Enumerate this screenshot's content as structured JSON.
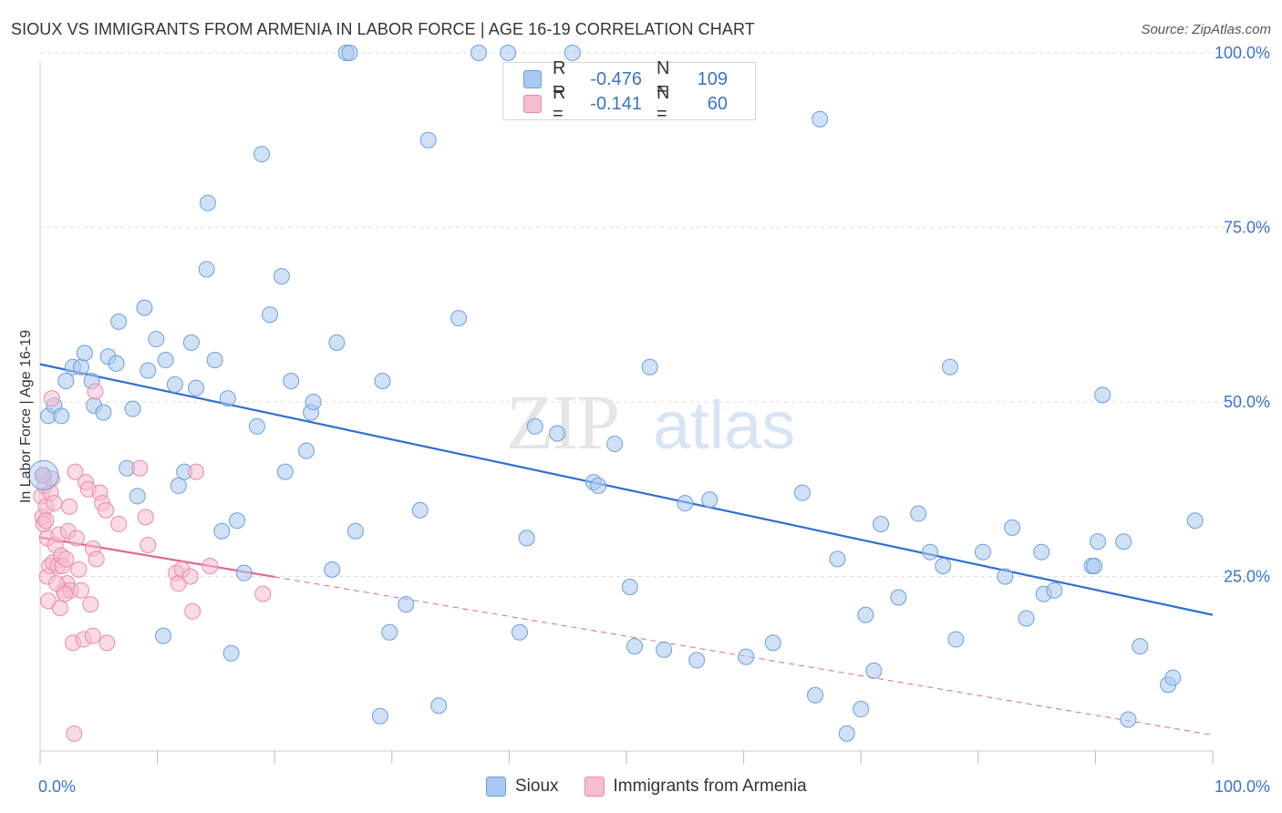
{
  "title": "SIOUX VS IMMIGRANTS FROM ARMENIA IN LABOR FORCE | AGE 16-19 CORRELATION CHART",
  "source": "Source: ZipAtlas.com",
  "watermark": {
    "zip": "ZIP",
    "atlas": "atlas"
  },
  "colors": {
    "blue_fill": "#a9c8ef",
    "blue_stroke": "#6a9fdf",
    "blue_line": "#2f6fd0",
    "pink_fill": "#f6bcd0",
    "pink_stroke": "#e98aa8",
    "pink_line": "#e06690",
    "tick_text": "#3a74c7",
    "grid": "#dddddd"
  },
  "legend": {
    "rows": [
      {
        "r_label": "R =",
        "r_value": "-0.476",
        "n_label": "N =",
        "n_value": "109"
      },
      {
        "r_label": "R =",
        "r_value": "-0.141",
        "n_label": "N =",
        "n_value": "60"
      }
    ]
  },
  "bottom_legend": {
    "series1": "Sioux",
    "series2": "Immigrants from Armenia"
  },
  "chart_data": {
    "type": "scatter",
    "title": "SIOUX VS IMMIGRANTS FROM ARMENIA IN LABOR FORCE | AGE 16-19 CORRELATION CHART",
    "ylabel": "In Labor Force | Age 16-19",
    "xlabel": "",
    "xlim": [
      0,
      100
    ],
    "ylim": [
      0,
      102
    ],
    "x_tick_labels": [
      "0.0%",
      "100.0%"
    ],
    "y_ticks": [
      25,
      50,
      75,
      100
    ],
    "y_tick_labels": [
      "25.0%",
      "50.0%",
      "75.0%",
      "100.0%"
    ],
    "grid": true,
    "series": [
      {
        "name": "Sioux",
        "r": -0.476,
        "n": 109,
        "trend": {
          "x": [
            0,
            100
          ],
          "y": [
            55.4,
            19.5
          ],
          "dashed_x": null
        },
        "points": [
          [
            0.3,
            39.5
          ],
          [
            0.7,
            48
          ],
          [
            1.2,
            49.5
          ],
          [
            1.8,
            48
          ],
          [
            2.2,
            53
          ],
          [
            2.8,
            55
          ],
          [
            3.5,
            55
          ],
          [
            3.8,
            57
          ],
          [
            4.4,
            53
          ],
          [
            4.6,
            49.5
          ],
          [
            5.4,
            48.5
          ],
          [
            5.8,
            56.5
          ],
          [
            6.5,
            55.5
          ],
          [
            6.7,
            61.5
          ],
          [
            7.4,
            40.5
          ],
          [
            7.9,
            49
          ],
          [
            8.3,
            36.5
          ],
          [
            8.9,
            63.5
          ],
          [
            9.2,
            54.5
          ],
          [
            9.9,
            59
          ],
          [
            10.5,
            16.5
          ],
          [
            10.7,
            56
          ],
          [
            11.5,
            52.5
          ],
          [
            11.8,
            38
          ],
          [
            12.3,
            40
          ],
          [
            12.9,
            58.5
          ],
          [
            13.3,
            52
          ],
          [
            14.2,
            69
          ],
          [
            14.3,
            78.5
          ],
          [
            14.9,
            56
          ],
          [
            15.5,
            31.5
          ],
          [
            16.0,
            50.5
          ],
          [
            16.3,
            14
          ],
          [
            16.8,
            33
          ],
          [
            17.4,
            25.5
          ],
          [
            18.5,
            46.5
          ],
          [
            18.9,
            85.5
          ],
          [
            19.6,
            62.5
          ],
          [
            20.6,
            68
          ],
          [
            20.9,
            40
          ],
          [
            21.4,
            53
          ],
          [
            22.7,
            43
          ],
          [
            23.1,
            48.5
          ],
          [
            23.3,
            50
          ],
          [
            24.9,
            26
          ],
          [
            25.3,
            58.5
          ],
          [
            26.1,
            100
          ],
          [
            26.4,
            100
          ],
          [
            26.9,
            31.5
          ],
          [
            29.0,
            5
          ],
          [
            29.2,
            53
          ],
          [
            29.8,
            17
          ],
          [
            31.2,
            21
          ],
          [
            32.4,
            34.5
          ],
          [
            33.1,
            87.5
          ],
          [
            34.0,
            6.5
          ],
          [
            35.7,
            62
          ],
          [
            37.4,
            100
          ],
          [
            39.9,
            100
          ],
          [
            40.9,
            17
          ],
          [
            41.5,
            30.5
          ],
          [
            42.2,
            46.5
          ],
          [
            44.1,
            45.5
          ],
          [
            45.4,
            100
          ],
          [
            47.2,
            38.5
          ],
          [
            47.6,
            38
          ],
          [
            49.0,
            44
          ],
          [
            50.3,
            23.5
          ],
          [
            50.7,
            15
          ],
          [
            52.0,
            55
          ],
          [
            53.2,
            14.5
          ],
          [
            55.0,
            35.5
          ],
          [
            56.0,
            13
          ],
          [
            57.1,
            36
          ],
          [
            60.2,
            13.5
          ],
          [
            62.5,
            15.5
          ],
          [
            65.0,
            37
          ],
          [
            66.1,
            8
          ],
          [
            66.5,
            90.5
          ],
          [
            68.0,
            27.5
          ],
          [
            68.8,
            2.5
          ],
          [
            70.0,
            6
          ],
          [
            70.4,
            19.5
          ],
          [
            71.1,
            11.5
          ],
          [
            71.7,
            32.5
          ],
          [
            73.2,
            22
          ],
          [
            74.9,
            34
          ],
          [
            75.9,
            28.5
          ],
          [
            77.0,
            26.5
          ],
          [
            77.6,
            55
          ],
          [
            78.1,
            16
          ],
          [
            80.4,
            28.5
          ],
          [
            82.3,
            25
          ],
          [
            82.9,
            32
          ],
          [
            84.1,
            19
          ],
          [
            85.4,
            28.5
          ],
          [
            85.6,
            22.5
          ],
          [
            86.5,
            23
          ],
          [
            89.7,
            26.5
          ],
          [
            89.9,
            26.5
          ],
          [
            90.2,
            30
          ],
          [
            90.6,
            51
          ],
          [
            92.4,
            30
          ],
          [
            92.8,
            4.5
          ],
          [
            93.8,
            15
          ],
          [
            96.2,
            9.5
          ],
          [
            96.6,
            10.5
          ],
          [
            98.5,
            33
          ]
        ]
      },
      {
        "name": "Immigrants from Armenia",
        "r": -0.141,
        "n": 60,
        "trend": {
          "x": [
            0,
            100
          ],
          "y": [
            30.6,
            2.3
          ],
          "solid_until_x": 20
        },
        "points": [
          [
            0.1,
            36.5
          ],
          [
            0.2,
            33.5
          ],
          [
            0.3,
            32.5
          ],
          [
            0.4,
            38
          ],
          [
            0.5,
            35
          ],
          [
            0.6,
            30.5
          ],
          [
            0.6,
            25
          ],
          [
            0.7,
            21.5
          ],
          [
            0.8,
            26.5
          ],
          [
            0.9,
            37
          ],
          [
            1.0,
            39
          ],
          [
            1.0,
            50.5
          ],
          [
            1.1,
            27
          ],
          [
            1.2,
            35.5
          ],
          [
            1.3,
            29.5
          ],
          [
            1.5,
            26.5
          ],
          [
            1.6,
            31
          ],
          [
            1.7,
            20.5
          ],
          [
            1.8,
            28
          ],
          [
            1.9,
            26.5
          ],
          [
            2.0,
            23
          ],
          [
            2.2,
            27.5
          ],
          [
            2.3,
            24
          ],
          [
            2.4,
            31.5
          ],
          [
            2.5,
            35
          ],
          [
            2.6,
            23
          ],
          [
            2.8,
            15.5
          ],
          [
            2.9,
            2.5
          ],
          [
            3.0,
            40
          ],
          [
            3.1,
            30.5
          ],
          [
            3.3,
            26
          ],
          [
            3.7,
            16
          ],
          [
            3.9,
            38.5
          ],
          [
            4.1,
            37.5
          ],
          [
            4.3,
            21
          ],
          [
            4.5,
            16.5
          ],
          [
            4.5,
            29
          ],
          [
            4.7,
            51.5
          ],
          [
            4.8,
            27.5
          ],
          [
            5.1,
            37
          ],
          [
            5.3,
            35.5
          ],
          [
            5.6,
            34.5
          ],
          [
            5.7,
            15.5
          ],
          [
            6.7,
            32.5
          ],
          [
            8.5,
            40.5
          ],
          [
            9.0,
            33.5
          ],
          [
            9.2,
            29.5
          ],
          [
            11.6,
            25.5
          ],
          [
            11.8,
            24
          ],
          [
            12.1,
            26
          ],
          [
            12.8,
            25
          ],
          [
            13.0,
            20
          ],
          [
            13.3,
            40
          ],
          [
            14.5,
            26.5
          ],
          [
            19.0,
            22.5
          ],
          [
            0.2,
            39.5
          ],
          [
            1.4,
            24
          ],
          [
            2.1,
            22.5
          ],
          [
            0.5,
            33
          ],
          [
            3.5,
            23
          ]
        ]
      }
    ]
  }
}
